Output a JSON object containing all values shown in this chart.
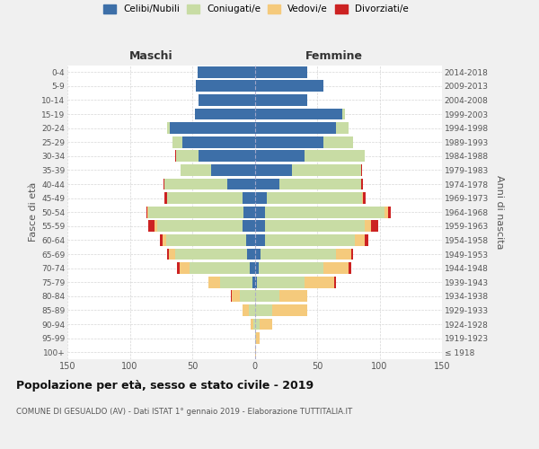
{
  "age_groups": [
    "100+",
    "95-99",
    "90-94",
    "85-89",
    "80-84",
    "75-79",
    "70-74",
    "65-69",
    "60-64",
    "55-59",
    "50-54",
    "45-49",
    "40-44",
    "35-39",
    "30-34",
    "25-29",
    "20-24",
    "15-19",
    "10-14",
    "5-9",
    "0-4"
  ],
  "birth_years": [
    "≤ 1918",
    "1919-1923",
    "1924-1928",
    "1929-1933",
    "1934-1938",
    "1939-1943",
    "1944-1948",
    "1949-1953",
    "1954-1958",
    "1959-1963",
    "1964-1968",
    "1969-1973",
    "1974-1978",
    "1979-1983",
    "1984-1988",
    "1989-1993",
    "1994-1998",
    "1999-2003",
    "2004-2008",
    "2009-2013",
    "2014-2018"
  ],
  "colors": {
    "celibi": "#3d6fa8",
    "coniugati": "#c8dca4",
    "vedovi": "#f5ca7c",
    "divorziati": "#cc2222"
  },
  "maschi": {
    "celibi": [
      0,
      0,
      0,
      0,
      0,
      2,
      4,
      6,
      7,
      10,
      9,
      10,
      22,
      35,
      45,
      58,
      68,
      48,
      45,
      47,
      46
    ],
    "coniugati": [
      0,
      0,
      1,
      5,
      12,
      26,
      48,
      58,
      64,
      68,
      76,
      60,
      50,
      24,
      18,
      8,
      2,
      0,
      0,
      0,
      0
    ],
    "vedovi": [
      0,
      0,
      2,
      5,
      6,
      9,
      8,
      5,
      3,
      2,
      1,
      0,
      0,
      0,
      0,
      0,
      0,
      0,
      0,
      0,
      0
    ],
    "divorziati": [
      0,
      0,
      0,
      0,
      1,
      0,
      2,
      1,
      2,
      5,
      1,
      2,
      1,
      0,
      1,
      0,
      0,
      0,
      0,
      0,
      0
    ]
  },
  "femmine": {
    "celibi": [
      0,
      0,
      0,
      0,
      0,
      2,
      3,
      5,
      8,
      8,
      8,
      10,
      20,
      30,
      40,
      55,
      65,
      70,
      42,
      55,
      42
    ],
    "coniugati": [
      0,
      1,
      4,
      14,
      20,
      38,
      52,
      60,
      72,
      80,
      96,
      76,
      65,
      55,
      48,
      24,
      10,
      2,
      0,
      0,
      0
    ],
    "vedovi": [
      1,
      3,
      10,
      28,
      22,
      24,
      20,
      12,
      8,
      5,
      3,
      1,
      0,
      0,
      0,
      0,
      0,
      0,
      0,
      0,
      0
    ],
    "divorziati": [
      0,
      0,
      0,
      0,
      0,
      1,
      2,
      2,
      3,
      6,
      2,
      2,
      2,
      1,
      0,
      0,
      0,
      0,
      0,
      0,
      0
    ]
  },
  "title": "Popolazione per età, sesso e stato civile - 2019",
  "subtitle": "COMUNE DI GESUALDO (AV) - Dati ISTAT 1° gennaio 2019 - Elaborazione TUTTITALIA.IT",
  "xlabel_maschi": "Maschi",
  "xlabel_femmine": "Femmine",
  "ylabel_left": "Fasce di età",
  "ylabel_right": "Anni di nascita",
  "xlim": 150,
  "bg_color": "#f0f0f0",
  "plot_bg": "#ffffff",
  "grid_color": "#cccccc"
}
